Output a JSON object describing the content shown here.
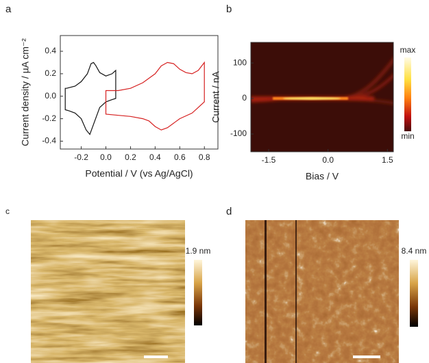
{
  "chart_data": [
    {
      "type": "line",
      "label": "a",
      "xlabel": "Potential / V (vs Ag/AgCl)",
      "ylabel": "Current density / µA cm⁻²",
      "xlim": [
        -0.37,
        0.91
      ],
      "ylim": [
        -0.47,
        0.54
      ],
      "xticks": [
        -0.2,
        {
          "value": 0,
          "label": "0.0"
        },
        0.2,
        0.4,
        0.6,
        0.8
      ],
      "yticks": [
        -0.4,
        -0.2,
        {
          "value": 0,
          "label": "0.0"
        },
        0.2,
        0.4
      ],
      "series": [
        {
          "color": "#111111",
          "x": [
            -0.32,
            -0.25,
            -0.2,
            -0.15,
            -0.12,
            -0.1,
            -0.08,
            -0.05,
            0.0,
            0.05,
            0.08,
            0.08,
            0.05,
            0.0,
            -0.05,
            -0.1,
            -0.13,
            -0.16,
            -0.2,
            -0.25,
            -0.3,
            -0.33,
            -0.33
          ],
          "values": [
            0.07,
            0.09,
            0.13,
            0.2,
            0.29,
            0.3,
            0.27,
            0.21,
            0.18,
            0.2,
            0.23,
            -0.02,
            -0.03,
            -0.05,
            -0.1,
            -0.25,
            -0.34,
            -0.3,
            -0.2,
            -0.15,
            -0.13,
            -0.12,
            0.07
          ]
        },
        {
          "color": "#d62020",
          "x": [
            0.0,
            0.1,
            0.2,
            0.3,
            0.4,
            0.45,
            0.5,
            0.55,
            0.6,
            0.65,
            0.7,
            0.75,
            0.8,
            0.8,
            0.75,
            0.7,
            0.6,
            0.5,
            0.45,
            0.4,
            0.35,
            0.3,
            0.2,
            0.1,
            0.0
          ],
          "values": [
            0.05,
            0.05,
            0.07,
            0.12,
            0.2,
            0.27,
            0.3,
            0.29,
            0.24,
            0.21,
            0.2,
            0.23,
            0.3,
            -0.05,
            -0.1,
            -0.15,
            -0.2,
            -0.28,
            -0.3,
            -0.27,
            -0.22,
            -0.2,
            -0.18,
            -0.17,
            -0.16
          ]
        }
      ]
    },
    {
      "type": "heatmap",
      "label": "b",
      "xlabel": "Bias / V",
      "ylabel": "Current / nA",
      "xlim": [
        -1.95,
        1.65
      ],
      "ylim": [
        -150,
        158
      ],
      "xticks": [
        -1.5,
        {
          "value": 0,
          "label": "0.0"
        },
        1.5
      ],
      "yticks": [
        -100,
        0,
        100
      ],
      "colorbar_labels": [
        "max",
        "min"
      ]
    }
  ],
  "panels": [
    {
      "label": "c",
      "colorbar_label": "1.9 nm"
    },
    {
      "label": "d",
      "colorbar_label": "8.4 nm"
    }
  ]
}
